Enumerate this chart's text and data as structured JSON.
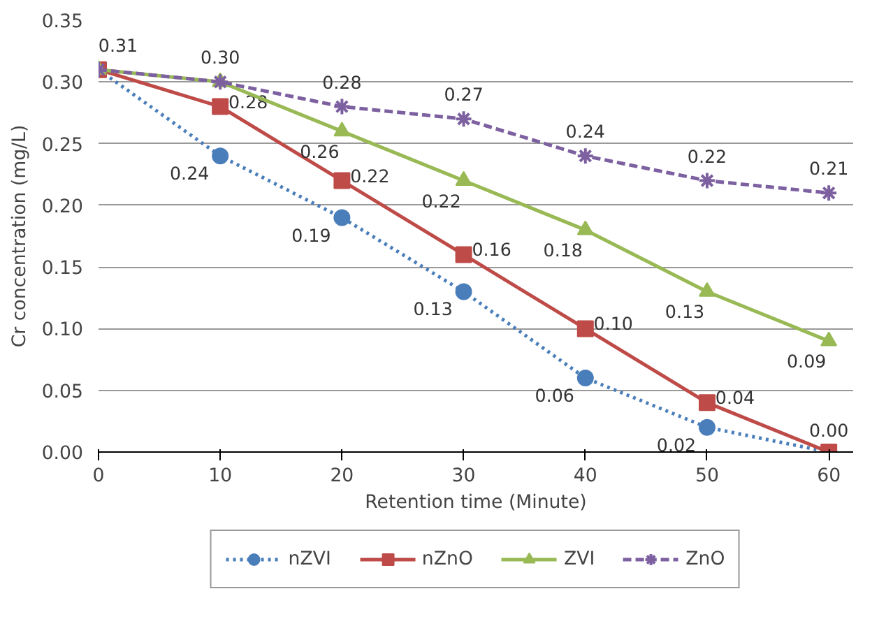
{
  "chart_data": {
    "type": "line",
    "xlabel": "Retention time (Minute)",
    "ylabel": "Cr concentration (mg/L)",
    "x": [
      0,
      10,
      20,
      30,
      40,
      50,
      60
    ],
    "xlim": [
      0,
      62
    ],
    "xticks": [
      0,
      10,
      20,
      30,
      40,
      50,
      60
    ],
    "ylim": [
      0,
      0.35
    ],
    "yticks": [
      {
        "value": 0,
        "label": "0.00"
      },
      {
        "value": 0.05,
        "label": "0.05"
      },
      {
        "value": 0.1,
        "label": "0.10"
      },
      {
        "value": 0.15,
        "label": "0.15"
      },
      {
        "value": 0.2,
        "label": "0.20"
      },
      {
        "value": 0.25,
        "label": "0.25"
      },
      {
        "value": 0.3,
        "label": "0.30"
      },
      {
        "value": 0.35,
        "label": "0.35"
      }
    ],
    "grid": "y",
    "legend": "bottom",
    "series": [
      {
        "name": "nZVI",
        "color": "#4a7ebb",
        "marker": "circle",
        "line_style": "dotted",
        "values": [
          0.31,
          0.24,
          0.19,
          0.13,
          0.06,
          0.02,
          0.0
        ],
        "value_labels": [
          null,
          "0.24",
          "0.19",
          "0.13",
          "0.06",
          "0.02",
          null
        ]
      },
      {
        "name": "nZnO",
        "color": "#be4b48",
        "marker": "square",
        "line_style": "solid",
        "values": [
          0.31,
          0.28,
          0.22,
          0.16,
          0.1,
          0.04,
          0.0
        ],
        "value_labels": [
          null,
          "0.28",
          "0.22",
          "0.16",
          "0.10",
          "0.04",
          "0.00"
        ]
      },
      {
        "name": "ZVI",
        "color": "#98b954",
        "marker": "triangle",
        "line_style": "solid",
        "values": [
          0.31,
          0.3,
          0.26,
          0.22,
          0.18,
          0.13,
          0.09
        ],
        "value_labels": [
          null,
          null,
          "0.26",
          "0.22",
          "0.18",
          "0.13",
          "0.09"
        ]
      },
      {
        "name": "ZnO",
        "color": "#7d60a0",
        "marker": "cross",
        "line_style": "dashed",
        "values": [
          0.31,
          0.3,
          0.28,
          0.27,
          0.24,
          0.22,
          0.21
        ],
        "value_labels": [
          "0.31",
          "0.30",
          "0.28",
          "0.27",
          "0.24",
          "0.22",
          "0.21"
        ]
      }
    ]
  }
}
